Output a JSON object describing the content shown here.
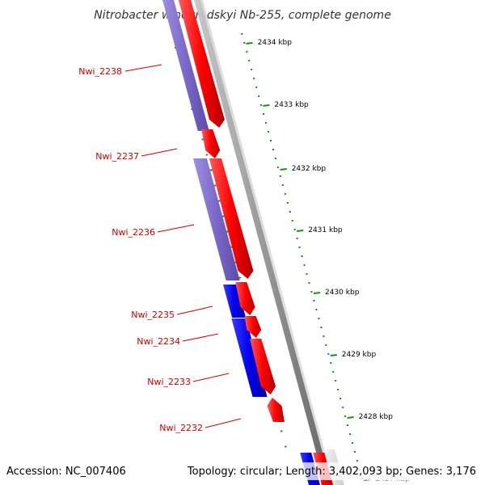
{
  "title": "Nitrobacter winogradskyi Nb-255, complete genome",
  "footer": {
    "accession": "Accession: NC_007406",
    "topology": "Topology: circular; Length: 3,402,093 bp; Genes: 3,176"
  },
  "colors": {
    "forward_cds": "#ff0000",
    "reverse_cds_dim": "#7b68c8",
    "reverse_cds": "#0000ee",
    "label": "#cc0000",
    "tick": "#1f8a1f",
    "backbone": "#888888"
  },
  "scale_labels": [
    "2434 kbp",
    "2433 kbp",
    "2432 kbp",
    "2431 kbp",
    "2430 kbp",
    "2429 kbp",
    "2428 kbp",
    "2427 kbp"
  ],
  "gene_labels": [
    "Nwi_2238",
    "Nwi_2237",
    "Nwi_2236",
    "Nwi_2235",
    "Nwi_2234",
    "Nwi_2233",
    "Nwi_2232"
  ]
}
